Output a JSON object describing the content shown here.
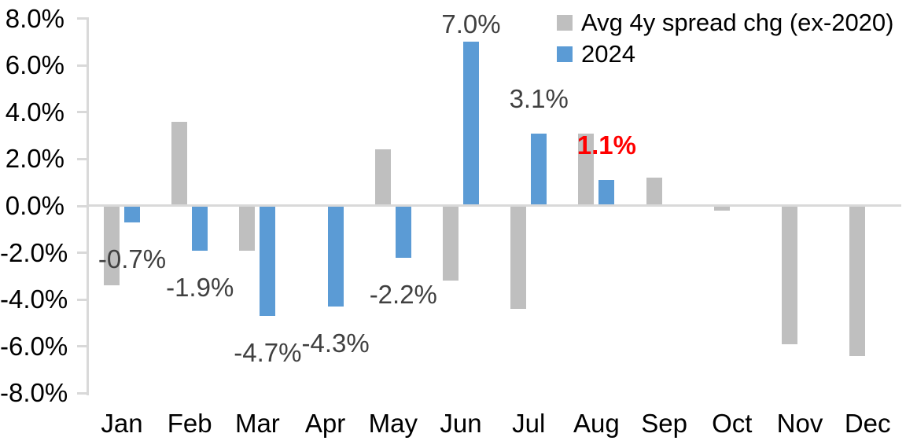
{
  "chart_data": {
    "type": "bar",
    "title": "",
    "xlabel": "",
    "ylabel": "",
    "categories": [
      "Jan",
      "Feb",
      "Mar",
      "Apr",
      "May",
      "Jun",
      "Jul",
      "Aug",
      "Sep",
      "Oct",
      "Nov",
      "Dec"
    ],
    "series": [
      {
        "name": "Avg 4y spread chg (ex-2020)",
        "color": "#BFBFBF",
        "values": [
          -3.4,
          3.6,
          -1.9,
          0.0,
          2.4,
          -3.2,
          -4.4,
          3.1,
          1.2,
          -0.2,
          -5.9,
          -6.4
        ]
      },
      {
        "name": "2024",
        "color": "#5B9BD5",
        "values": [
          -0.7,
          -1.9,
          -4.7,
          -4.3,
          -2.2,
          7.0,
          3.1,
          1.1,
          null,
          null,
          null,
          null
        ]
      }
    ],
    "data_labels": [
      {
        "month": "Jan",
        "text": "-0.7%",
        "color": "#404040",
        "bold": false
      },
      {
        "month": "Feb",
        "text": "-1.9%",
        "color": "#404040",
        "bold": false
      },
      {
        "month": "Mar",
        "text": "-4.7%",
        "color": "#404040",
        "bold": false
      },
      {
        "month": "Apr",
        "text": "-4.3%",
        "color": "#404040",
        "bold": false
      },
      {
        "month": "May",
        "text": "-2.2%",
        "color": "#404040",
        "bold": false
      },
      {
        "month": "Jun",
        "text": "7.0%",
        "color": "#404040",
        "bold": false
      },
      {
        "month": "Jul",
        "text": "3.1%",
        "color": "#404040",
        "bold": false
      },
      {
        "month": "Aug",
        "text": "1.1%",
        "color": "#FF0000",
        "bold": true
      }
    ],
    "ylim": [
      -8,
      8
    ],
    "y_ticks": [
      "8.0%",
      "6.0%",
      "4.0%",
      "2.0%",
      "0.0%",
      "-2.0%",
      "-4.0%",
      "-6.0%",
      "-8.0%"
    ],
    "grid": false,
    "legend_position": "top-right",
    "axis_color": "#D9D9D9",
    "tick_label_color": "#000000",
    "data_label_color": "#404040",
    "highlight_label_color": "#FF0000"
  }
}
